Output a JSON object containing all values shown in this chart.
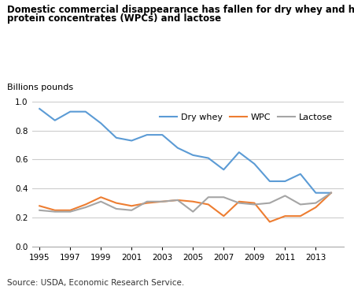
{
  "title_line1": "Domestic commercial disappearance has fallen for dry whey and has fluctuated for whey",
  "title_line2": "protein concentrates (WPCs) and lactose",
  "ylabel": "Billions pounds",
  "source": "Source: USDA, Economic Research Service.",
  "years": [
    1995,
    1996,
    1997,
    1998,
    1999,
    2000,
    2001,
    2002,
    2003,
    2004,
    2005,
    2006,
    2007,
    2008,
    2009,
    2010,
    2011,
    2012,
    2013,
    2014
  ],
  "dry_whey": [
    0.95,
    0.87,
    0.93,
    0.93,
    0.85,
    0.75,
    0.73,
    0.77,
    0.77,
    0.68,
    0.63,
    0.61,
    0.53,
    0.65,
    0.57,
    0.45,
    0.45,
    0.5,
    0.37,
    0.37
  ],
  "wpc": [
    0.28,
    0.25,
    0.25,
    0.29,
    0.34,
    0.3,
    0.28,
    0.3,
    0.31,
    0.32,
    0.31,
    0.29,
    0.21,
    0.31,
    0.3,
    0.17,
    0.21,
    0.21,
    0.27,
    0.37
  ],
  "lactose": [
    0.25,
    0.24,
    0.24,
    0.27,
    0.31,
    0.26,
    0.25,
    0.31,
    0.31,
    0.32,
    0.24,
    0.34,
    0.34,
    0.3,
    0.29,
    0.3,
    0.35,
    0.29,
    0.3,
    0.37
  ],
  "dry_whey_color": "#5b9bd5",
  "wpc_color": "#ed7d31",
  "lactose_color": "#a5a5a5",
  "ylim": [
    0,
    1.0
  ],
  "yticks": [
    0,
    0.2,
    0.4,
    0.6,
    0.8,
    1.0
  ],
  "background_color": "#ffffff",
  "grid_color": "#cccccc",
  "title_fontsize": 8.5,
  "label_fontsize": 8,
  "tick_fontsize": 7.5,
  "legend_fontsize": 8
}
